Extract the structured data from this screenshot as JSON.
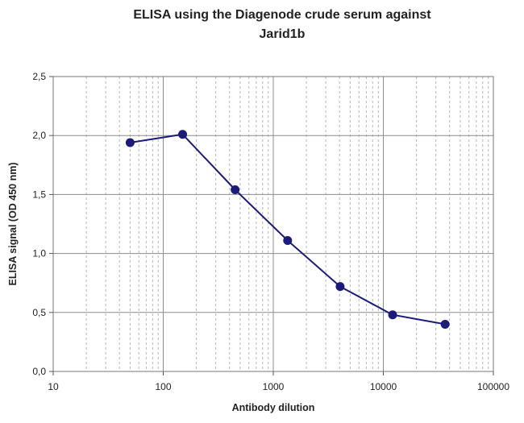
{
  "chart_data": {
    "type": "line",
    "title": [
      "ELISA using the Diagenode crude serum against",
      "Jarid1b"
    ],
    "xlabel": "Antibody dilution",
    "ylabel": "ELISA signal (OD 450 nm)",
    "x_scale": "log",
    "xlim": [
      10,
      100000
    ],
    "ylim": [
      0,
      2.5
    ],
    "x_ticks": [
      10,
      100,
      1000,
      10000,
      100000
    ],
    "x_tick_labels": [
      "10",
      "100",
      "1000",
      "10000",
      "100000"
    ],
    "y_ticks": [
      0,
      0.5,
      1,
      1.5,
      2,
      2.5
    ],
    "y_tick_labels": [
      "0,0",
      "0,5",
      "1,0",
      "1,5",
      "2,0",
      "2,5"
    ],
    "grid": true,
    "legend": false,
    "series": [
      {
        "x": [
          50,
          150,
          450,
          1350,
          4050,
          12150,
          36450
        ],
        "values": [
          1.94,
          2.01,
          1.54,
          1.11,
          0.72,
          0.48,
          0.4
        ],
        "color": "#1b1b7a"
      }
    ]
  }
}
